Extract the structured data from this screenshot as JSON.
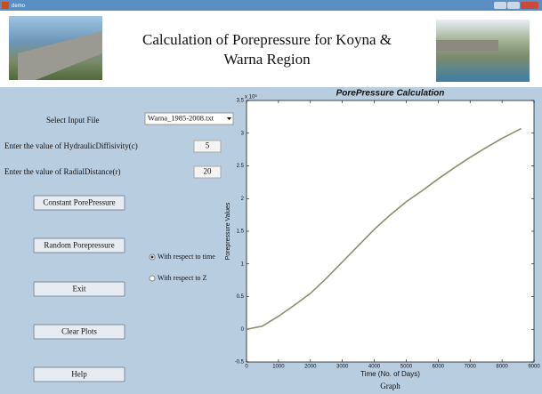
{
  "window": {
    "title": "demo"
  },
  "header": {
    "title_line1": "Calculation of Porepressure for Koyna &",
    "title_line2": "Warna Region"
  },
  "controls": {
    "file_label": "Select Input File",
    "file_value": "Warna_1985-2008.txt",
    "diffusivity_label": "Enter the value of HydraulicDiffisivity(c)",
    "diffusivity_value": "5",
    "distance_label": "Enter the value of RadialDistance(r)",
    "distance_value": "20",
    "buttons": [
      "Constant PorePressure",
      "Random Porepressure",
      "Exit",
      "Clear Plots",
      "Help"
    ],
    "radios": [
      "With respect to time",
      "With respect to Z"
    ]
  },
  "chart_data": {
    "type": "line",
    "title": "PorePressure Calculation",
    "x_label": "Time (No. of Days)",
    "y_label": "Porepressure Values",
    "y_exponent": "x 10⁶",
    "caption": "Graph",
    "x": [
      0,
      500,
      1000,
      1500,
      2000,
      2500,
      3000,
      3500,
      4000,
      4500,
      5000,
      5500,
      6000,
      6500,
      7000,
      7500,
      8000,
      8600
    ],
    "values": [
      0,
      0.05,
      0.2,
      0.37,
      0.55,
      0.78,
      1.03,
      1.28,
      1.53,
      1.75,
      1.95,
      2.12,
      2.3,
      2.47,
      2.63,
      2.78,
      2.92,
      3.07
    ],
    "color": "#8a8f6a",
    "xlim": [
      0,
      9000
    ],
    "xticks": [
      0,
      1000,
      2000,
      3000,
      4000,
      5000,
      6000,
      7000,
      8000,
      9000
    ],
    "ylim": [
      -0.5,
      3.5
    ],
    "yticks": [
      -0.5,
      0,
      0.5,
      1,
      1.5,
      2,
      2.5,
      3,
      3.5
    ]
  }
}
